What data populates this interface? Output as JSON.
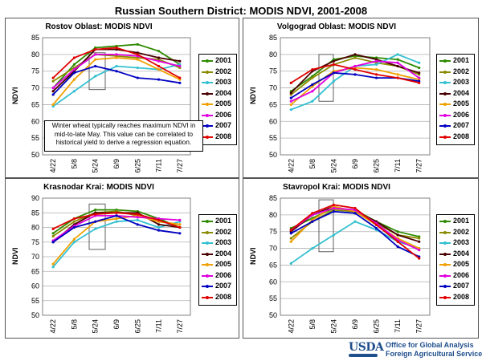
{
  "title": "Russian Southern District:  MODIS NDVI, 2001-2008",
  "annotation": "Winter wheat typically reaches maximum NDVI in mid-to-late May.  This value can be correlated to historical yield to derive a regression equation.",
  "footer": {
    "logo_text": "USDA",
    "line1": "Office for Global Analysis",
    "line2": "Foreign Agricultural Service"
  },
  "legend": [
    "2001",
    "2002",
    "2003",
    "2004",
    "2005",
    "2006",
    "2007",
    "2008"
  ],
  "colors": {
    "2001": "#2e8b00",
    "2002": "#8b8b00",
    "2003": "#33c0d0",
    "2004": "#4a0000",
    "2005": "#f0a000",
    "2006": "#e000e0",
    "2007": "#0000c0",
    "2008": "#e00000"
  },
  "chart_data": [
    {
      "type": "line",
      "title": "Rostov Oblast:  MODIS NDVI",
      "ylabel": "NDVI",
      "ylim": [
        50,
        85
      ],
      "yticks": [
        50,
        55,
        60,
        65,
        70,
        75,
        80,
        85
      ],
      "x": [
        "4/22",
        "5/8",
        "5/24",
        "6/9",
        "6/25",
        "7/11",
        "7/27"
      ],
      "series": [
        {
          "name": "2001",
          "values": [
            70,
            77,
            82,
            82.5,
            83,
            81,
            77
          ]
        },
        {
          "name": "2002",
          "values": [
            72,
            76,
            80,
            79.5,
            79,
            78.5,
            76
          ]
        },
        {
          "name": "2003",
          "values": [
            64.5,
            69,
            73.5,
            76.5,
            76,
            75.5,
            77
          ]
        },
        {
          "name": "2004",
          "values": [
            69,
            75,
            81.5,
            81.5,
            80.5,
            79,
            78
          ]
        },
        {
          "name": "2005",
          "values": [
            65,
            72.5,
            78.5,
            79,
            78.5,
            75.5,
            72.5
          ]
        },
        {
          "name": "2006",
          "values": [
            70,
            75.5,
            80,
            80,
            79.5,
            78,
            76.5
          ]
        },
        {
          "name": "2007",
          "values": [
            68,
            74.5,
            76.5,
            75,
            73,
            72.5,
            71.5
          ]
        },
        {
          "name": "2008",
          "values": [
            73,
            79,
            81.5,
            82,
            80,
            76.5,
            73
          ]
        }
      ]
    },
    {
      "type": "line",
      "title": "Volgograd Oblast:  MODIS NDVI",
      "ylabel": "NDVI",
      "ylim": [
        50,
        85
      ],
      "yticks": [
        50,
        55,
        60,
        65,
        70,
        75,
        80,
        85
      ],
      "x": [
        "4/22",
        "5/8",
        "5/24",
        "6/9",
        "6/25",
        "7/11",
        "7/27"
      ],
      "series": [
        {
          "name": "2001",
          "values": [
            69,
            73.5,
            78.5,
            79.5,
            79,
            78.5,
            76
          ]
        },
        {
          "name": "2002",
          "values": [
            68,
            73,
            77,
            79,
            77.5,
            76.5,
            74
          ]
        },
        {
          "name": "2003",
          "values": [
            63.5,
            66,
            72,
            76.5,
            77,
            80,
            77.5
          ]
        },
        {
          "name": "2004",
          "values": [
            68.5,
            75,
            78,
            80,
            78.5,
            76.5,
            74.5
          ]
        },
        {
          "name": "2005",
          "values": [
            65,
            70.5,
            75,
            76,
            75.5,
            74,
            72.5
          ]
        },
        {
          "name": "2006",
          "values": [
            66,
            69,
            74.5,
            76.5,
            78,
            77.5,
            73
          ]
        },
        {
          "name": "2007",
          "values": [
            67,
            71,
            74.5,
            74,
            73,
            73,
            72
          ]
        },
        {
          "name": "2008",
          "values": [
            71.5,
            75.5,
            77,
            75.5,
            74,
            73,
            71.5
          ]
        }
      ]
    },
    {
      "type": "line",
      "title": "Krasnodar Krai:  MODIS NDVI",
      "ylabel": "NDVI",
      "ylim": [
        50,
        90
      ],
      "yticks": [
        50,
        55,
        60,
        65,
        70,
        75,
        80,
        85,
        90
      ],
      "x": [
        "4/22",
        "5/8",
        "5/24",
        "6/9",
        "6/25",
        "7/11",
        "7/27"
      ],
      "series": [
        {
          "name": "2001",
          "values": [
            78,
            83,
            86,
            86,
            85.5,
            83,
            80
          ]
        },
        {
          "name": "2002",
          "values": [
            77,
            82,
            85,
            85.5,
            84,
            82,
            81
          ]
        },
        {
          "name": "2003",
          "values": [
            66.5,
            75,
            79.5,
            82,
            82.5,
            80,
            82
          ]
        },
        {
          "name": "2004",
          "values": [
            75,
            81,
            85,
            85,
            85,
            81,
            80
          ]
        },
        {
          "name": "2005",
          "values": [
            67.5,
            76,
            82,
            83,
            84,
            82,
            81
          ]
        },
        {
          "name": "2006",
          "values": [
            75.5,
            80.5,
            84,
            84,
            83.5,
            83,
            82.5
          ]
        },
        {
          "name": "2007",
          "values": [
            75,
            80,
            82,
            84,
            81,
            79,
            78
          ]
        },
        {
          "name": "2008",
          "values": [
            79.5,
            83,
            84.5,
            85,
            84.5,
            82.5,
            80
          ]
        }
      ]
    },
    {
      "type": "line",
      "title": "Stavropol Krai:  MODIS NDVI",
      "ylabel": "NDVI",
      "ylim": [
        50,
        85
      ],
      "yticks": [
        50,
        55,
        60,
        65,
        70,
        75,
        80,
        85
      ],
      "x": [
        "4/22",
        "5/8",
        "5/24",
        "6/9",
        "6/25",
        "7/11",
        "7/27"
      ],
      "series": [
        {
          "name": "2001",
          "values": [
            76,
            79,
            82,
            81.5,
            78,
            75,
            73.5
          ]
        },
        {
          "name": "2002",
          "values": [
            73,
            78,
            81.5,
            81,
            77.5,
            74,
            73
          ]
        },
        {
          "name": "2003",
          "values": [
            65.5,
            70,
            74,
            78,
            75.5,
            72,
            70
          ]
        },
        {
          "name": "2004",
          "values": [
            75,
            80,
            82.5,
            81,
            78,
            74,
            72
          ]
        },
        {
          "name": "2005",
          "values": [
            72,
            78.5,
            82.5,
            81,
            77,
            73,
            70
          ]
        },
        {
          "name": "2006",
          "values": [
            75.5,
            80,
            82,
            81.5,
            77.5,
            72.5,
            69.5
          ]
        },
        {
          "name": "2007",
          "values": [
            74.5,
            78,
            81,
            80.5,
            76,
            70.5,
            67.5
          ]
        },
        {
          "name": "2008",
          "values": [
            75.5,
            80.5,
            83,
            82,
            77,
            72,
            67
          ]
        }
      ]
    }
  ]
}
